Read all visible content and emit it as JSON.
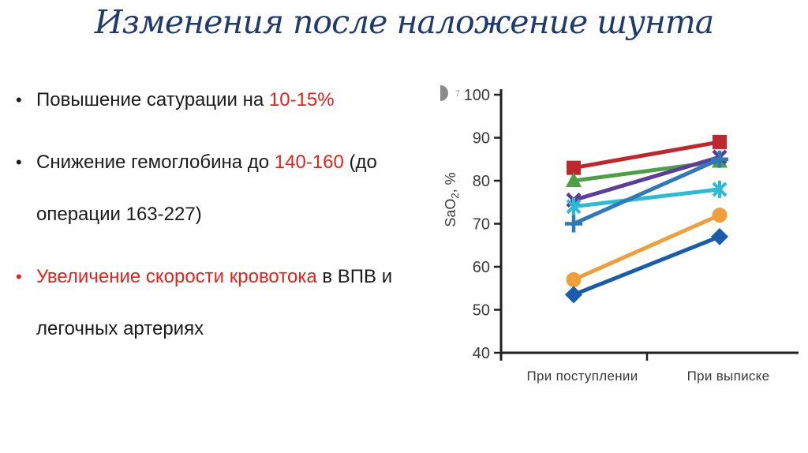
{
  "slide": {
    "title": "Изменения после наложение шунта",
    "title_color": "#1e3a6e",
    "accent_red": "#e3231c",
    "background": "#ffffff"
  },
  "bullets": [
    {
      "marker": "•",
      "marker_red": false,
      "segments": [
        {
          "text": "Повышение сатурации на ",
          "red": false
        },
        {
          "text": "10-15%",
          "red": true
        }
      ]
    },
    {
      "marker": "•",
      "marker_red": false,
      "segments": [
        {
          "text": "Снижение гемоглобина до ",
          "red": false
        },
        {
          "text": "140-160",
          "red": true
        },
        {
          "text": " (до операции 163-227)",
          "red": false
        }
      ]
    },
    {
      "marker": "•",
      "marker_red": true,
      "segments": [
        {
          "text": "Увеличение скорости кровотока",
          "red": true
        },
        {
          "text": " в ВПВ и легочных артериях",
          "red": false
        }
      ]
    }
  ],
  "chart_data": {
    "type": "line",
    "title": "",
    "xlabel": "",
    "ylabel": "SaO2, %",
    "ylim": [
      40,
      100
    ],
    "yticks": [
      100,
      90,
      80,
      70,
      60,
      50,
      40
    ],
    "categories": [
      "При поступлении",
      "При выписке"
    ],
    "grid": false,
    "legend_position": "none",
    "axis_color": "#231f20",
    "tick_label_color": "#3a3a3a",
    "series": [
      {
        "marker": "square",
        "color": "#c0272d",
        "values": [
          83,
          89
        ]
      },
      {
        "marker": "triangle",
        "color": "#4da144",
        "values": [
          80,
          84.5
        ]
      },
      {
        "marker": "x",
        "color": "#5b3d9e",
        "values": [
          75.5,
          85.5
        ]
      },
      {
        "marker": "asterisk",
        "color": "#29bcd4",
        "values": [
          74,
          78
        ]
      },
      {
        "marker": "plus",
        "color": "#2f78ba",
        "values": [
          70,
          85
        ]
      },
      {
        "marker": "circle",
        "color": "#ef9f3a",
        "values": [
          57,
          72
        ]
      },
      {
        "marker": "diamond",
        "color": "#1a5cac",
        "values": [
          53.5,
          67
        ]
      }
    ],
    "corner_badge": {
      "label": "7",
      "color": "#8a8a8a"
    }
  }
}
